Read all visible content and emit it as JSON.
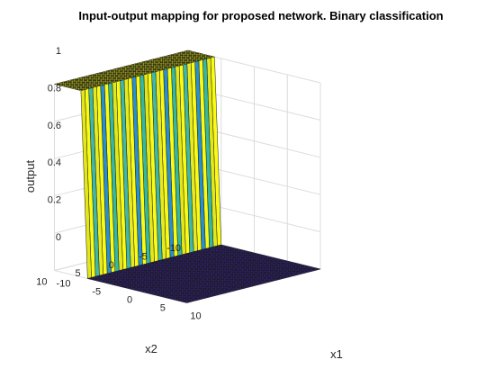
{
  "chart_data": {
    "type": "surface",
    "title": "Input-output mapping for proposed network. Binary classification",
    "xlabel": "x1",
    "ylabel": "x2",
    "zlabel": "output",
    "xlim": [
      -10,
      10
    ],
    "ylim": [
      -10,
      10
    ],
    "zlim": [
      0,
      1
    ],
    "x_ticks": [
      -10,
      -5,
      0,
      5,
      10
    ],
    "y_ticks": [
      -10,
      -5,
      0,
      5,
      10
    ],
    "z_ticks": [
      0,
      0.2,
      0.4,
      0.6,
      0.8,
      1
    ],
    "grid": true,
    "colormap": "parula",
    "low_color": "#3e26a8",
    "high_color": "#f9fb15",
    "surface": {
      "description_rule": "output = 1 where x1 < -6, output = 0 where x1 > -5; oscillating transition between",
      "x1_step_low": -6,
      "x1_step_high": -5,
      "low_value": 0,
      "high_value": 1
    }
  }
}
